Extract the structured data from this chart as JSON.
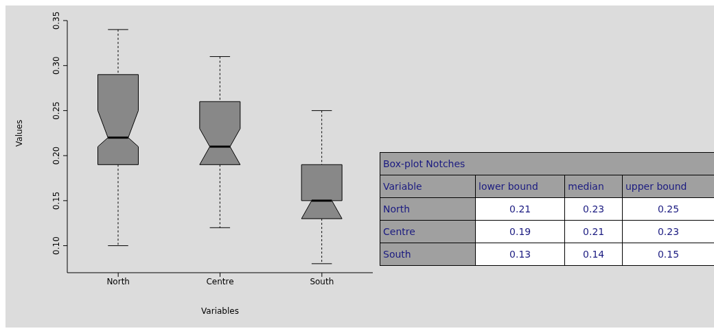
{
  "chart_data": [
    {
      "type": "box",
      "xlabel": "Variables",
      "ylabel": "Values",
      "categories": [
        "North",
        "Centre",
        "South"
      ],
      "color": "#888888",
      "boxes": [
        {
          "low": 0.1,
          "q1": 0.19,
          "median": 0.22,
          "q3": 0.29,
          "high": 0.34
        },
        {
          "low": 0.12,
          "q1": 0.19,
          "median": 0.21,
          "q3": 0.26,
          "high": 0.31
        },
        {
          "low": 0.08,
          "q1": 0.13,
          "median": 0.15,
          "q3": 0.19,
          "high": 0.25
        }
      ],
      "ylim": [
        0.07,
        0.35
      ],
      "yticks": [
        {
          "value": 0.1,
          "label": "0.10"
        },
        {
          "value": 0.15,
          "label": "0.15"
        },
        {
          "value": 0.2,
          "label": "0.20"
        },
        {
          "value": 0.25,
          "label": "0.25"
        },
        {
          "value": 0.3,
          "label": "0.30"
        },
        {
          "value": 0.35,
          "label": "0.35"
        }
      ],
      "grid": false
    },
    {
      "type": "other",
      "title": "Box-plot Notches",
      "legend_title": "Variable",
      "categories": [
        "lower bound",
        "median",
        "upper bound"
      ],
      "data_labels": true,
      "series": [
        {
          "name": "North",
          "values": [
            0.21,
            0.23,
            0.25
          ]
        },
        {
          "name": "Centre",
          "values": [
            0.19,
            0.21,
            0.23
          ]
        },
        {
          "name": "South",
          "values": [
            0.13,
            0.14,
            0.15
          ]
        }
      ]
    }
  ]
}
